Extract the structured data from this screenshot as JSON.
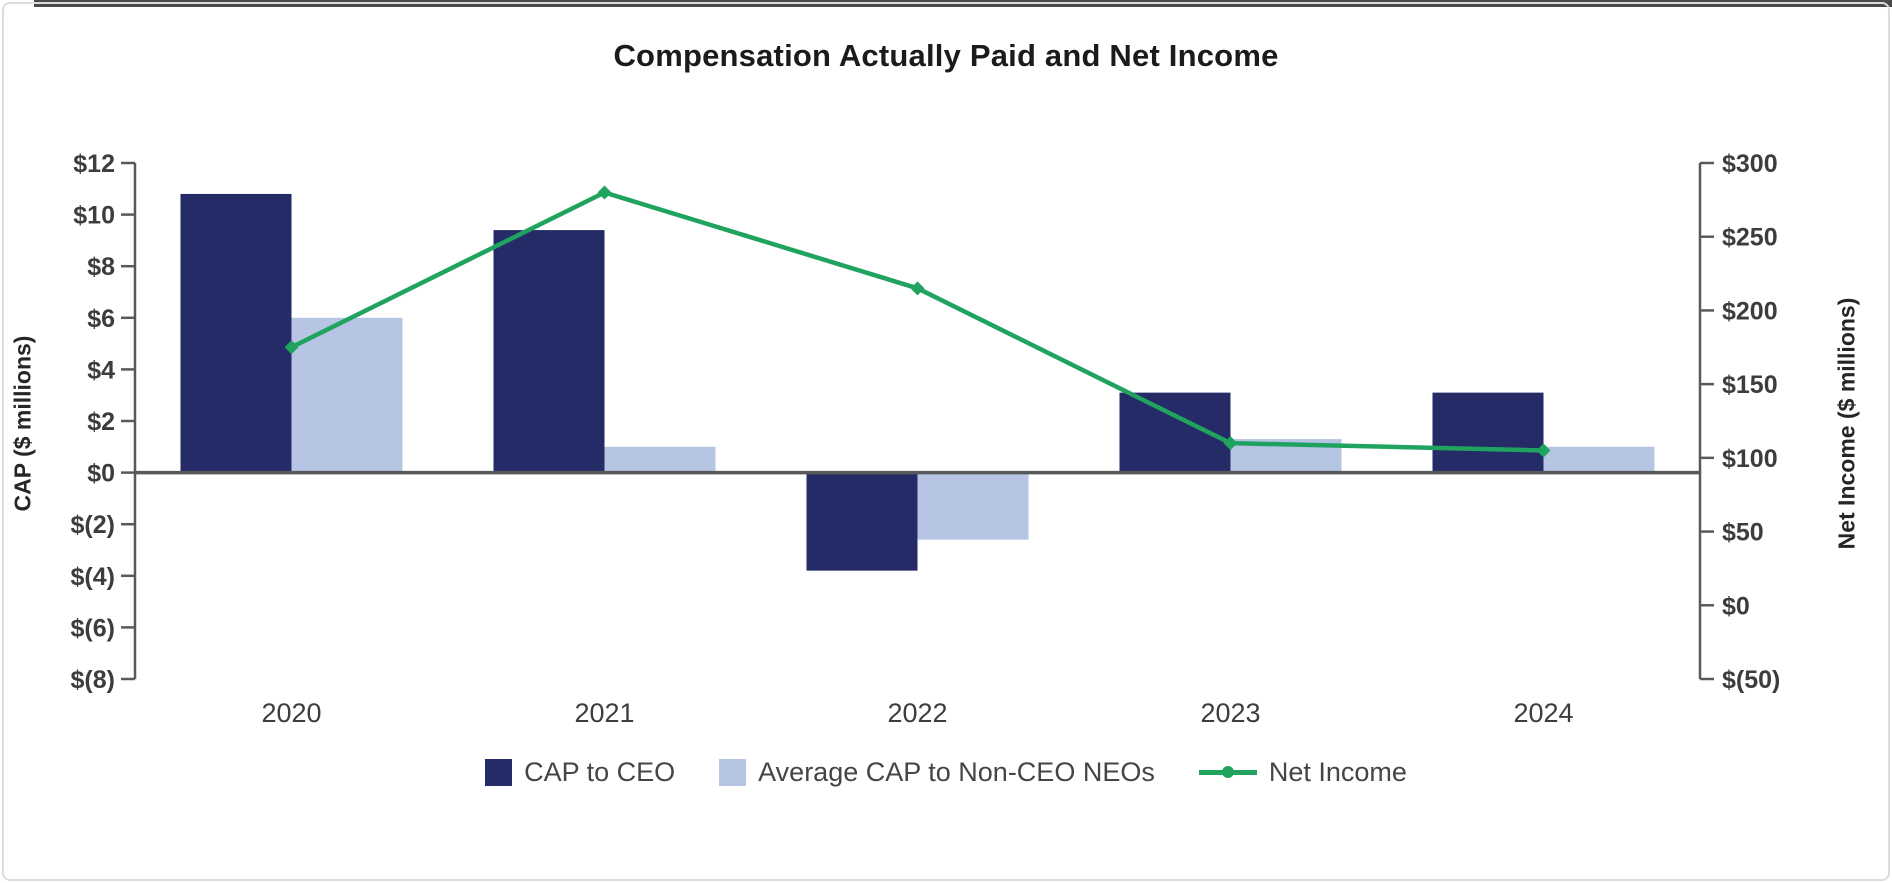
{
  "page": {
    "title": "Compensation Actually Paid and Net Income"
  },
  "chart_data": {
    "type": "combo-bar-line",
    "title": "Compensation Actually Paid and Net Income",
    "categories": [
      "2020",
      "2021",
      "2022",
      "2023",
      "2024"
    ],
    "series": [
      {
        "name": "CAP to CEO",
        "type": "bar",
        "axis": "left",
        "color": "#242B66",
        "values": [
          10.8,
          9.4,
          -3.8,
          3.1,
          3.1
        ]
      },
      {
        "name": "Average CAP to Non-CEO NEOs",
        "type": "bar",
        "axis": "left",
        "color": "#B6C5E4",
        "values": [
          6.0,
          1.0,
          -2.6,
          1.3,
          1.0
        ]
      },
      {
        "name": "Net Income",
        "type": "line",
        "axis": "right",
        "color": "#1FA35F",
        "marker": "diamond",
        "values": [
          175,
          280,
          215,
          110,
          105
        ]
      }
    ],
    "left_axis": {
      "label": "CAP ($ millions)",
      "min": -8,
      "max": 12,
      "step": 2,
      "tick_labels": [
        "$12",
        "$10",
        "$8",
        "$6",
        "$4",
        "$2",
        "$0",
        "$(2)",
        "$(4)",
        "$(6)",
        "$(8)"
      ]
    },
    "right_axis": {
      "label": "Net Income ($ millions)",
      "min": -50,
      "max": 300,
      "step": 50,
      "tick_labels": [
        "$300",
        "$250",
        "$200",
        "$150",
        "$100",
        "$50",
        "$0",
        "$(50)"
      ]
    },
    "grid": false,
    "legend_position": "bottom",
    "axis_color": "#58595B",
    "text_color": "#3D3D3D"
  }
}
